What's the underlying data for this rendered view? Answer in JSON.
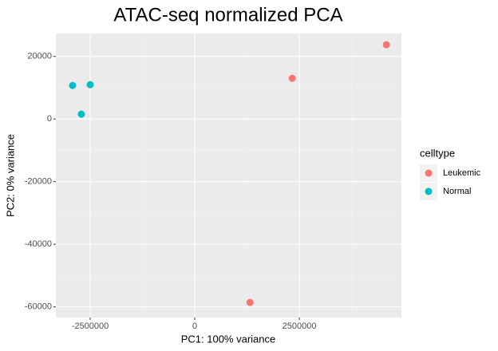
{
  "chart_data": {
    "type": "scatter",
    "title": "ATAC-seq normalized PCA",
    "x_label": "PC1: 100% variance",
    "y_label": "PC2: 0% variance",
    "legend_title": "celltype",
    "legend_position": "right",
    "grid": true,
    "xlim": [
      -3320000,
      4940000
    ],
    "xticks": [
      -2500000,
      0,
      2500000
    ],
    "ylim": [
      -63400,
      27300
    ],
    "yticks": [
      -60000,
      -40000,
      -20000,
      0,
      20000
    ],
    "series": [
      {
        "name": "Leukemic",
        "color": "#f8766d",
        "x": [
          4580000,
          2330000,
          1320000
        ],
        "y": [
          23700,
          13000,
          -58600
        ]
      },
      {
        "name": "Normal",
        "color": "#00bfc4",
        "x": [
          -2920000,
          -2500000,
          -2710000
        ],
        "y": [
          10700,
          10950,
          1530
        ]
      }
    ]
  }
}
